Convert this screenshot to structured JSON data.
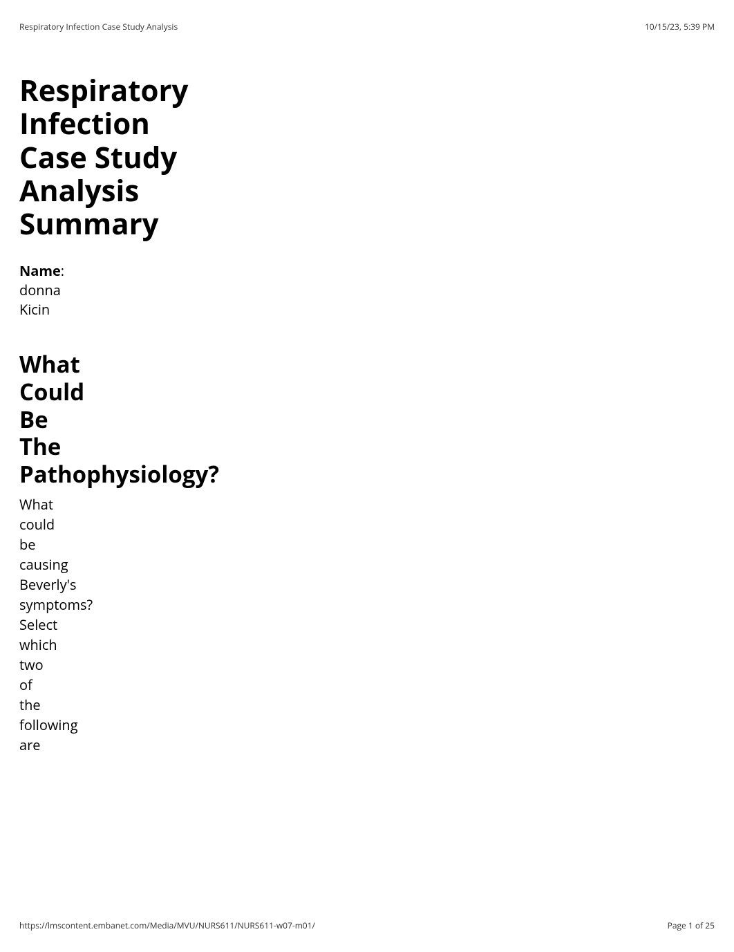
{
  "header": {
    "title": "Respiratory Infection Case Study Analysis",
    "timestamp": "10/15/23, 5:39 PM"
  },
  "main_title_words": [
    "Respiratory",
    "Infection",
    "Case",
    "Study",
    "Analysis",
    "Summary"
  ],
  "name": {
    "label": "Name",
    "colon": ":",
    "value_line1": "donna",
    "value_line2": "Kicin"
  },
  "section_heading_words": [
    "What",
    "Could",
    "Be",
    "The",
    "Pathophysiology?"
  ],
  "body_words": [
    "What",
    "could",
    "be",
    "causing",
    "Beverly's",
    "symptoms?",
    "Select",
    "which",
    "two",
    "of",
    "the",
    "following",
    "are"
  ],
  "footer": {
    "url": "https://lmscontent.embanet.com/Media/MVU/NURS611/NURS611-w07-m01/",
    "page_info": "Page 1 of 25"
  },
  "colors": {
    "background": "#ffffff",
    "text": "#000000",
    "header_footer_text": "#333333"
  },
  "typography": {
    "main_title_fontsize": 42,
    "section_heading_fontsize": 33,
    "body_fontsize": 20,
    "header_footer_fontsize": 12
  }
}
